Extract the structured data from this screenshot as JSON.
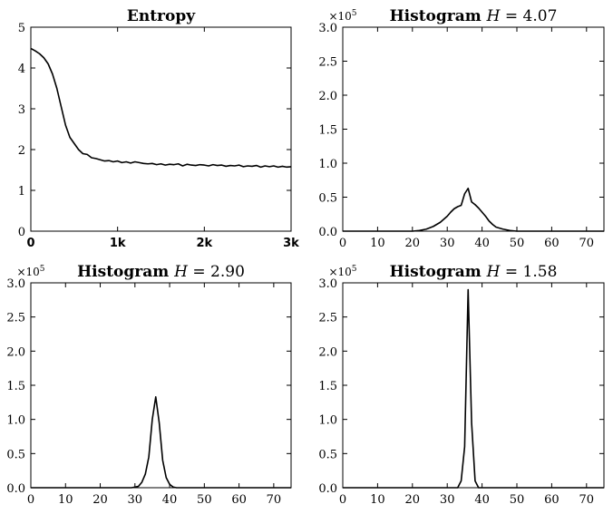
{
  "chart_data": [
    {
      "id": "entropy",
      "type": "line",
      "title": "Entropy",
      "title_parts": [
        {
          "text": "Entropy",
          "style": "bold"
        }
      ],
      "xlim": [
        0,
        3000
      ],
      "ylim": [
        0,
        5
      ],
      "xticks": [
        0,
        1000,
        2000,
        3000
      ],
      "xtick_labels": [
        "0",
        "1k",
        "2k",
        "3k"
      ],
      "yticks": [
        0,
        1,
        2,
        3,
        4,
        5
      ],
      "ytick_labels": [
        "0",
        "1",
        "2",
        "3",
        "4",
        "5"
      ],
      "multiplier": "",
      "grid": false,
      "x": [
        0,
        50,
        100,
        150,
        200,
        250,
        300,
        350,
        400,
        450,
        500,
        550,
        600,
        650,
        700,
        750,
        800,
        850,
        900,
        950,
        1000,
        1050,
        1100,
        1150,
        1200,
        1250,
        1300,
        1350,
        1400,
        1450,
        1500,
        1550,
        1600,
        1650,
        1700,
        1750,
        1800,
        1850,
        1900,
        1950,
        2000,
        2050,
        2100,
        2150,
        2200,
        2250,
        2300,
        2350,
        2400,
        2450,
        2500,
        2550,
        2600,
        2650,
        2700,
        2750,
        2800,
        2850,
        2900,
        2950,
        3000
      ],
      "y": [
        4.48,
        4.42,
        4.35,
        4.25,
        4.1,
        3.85,
        3.5,
        3.05,
        2.6,
        2.3,
        2.15,
        2.0,
        1.9,
        1.88,
        1.8,
        1.78,
        1.75,
        1.72,
        1.73,
        1.7,
        1.72,
        1.68,
        1.7,
        1.67,
        1.7,
        1.68,
        1.66,
        1.65,
        1.66,
        1.63,
        1.65,
        1.62,
        1.64,
        1.63,
        1.65,
        1.6,
        1.64,
        1.62,
        1.61,
        1.63,
        1.62,
        1.6,
        1.63,
        1.61,
        1.62,
        1.59,
        1.61,
        1.6,
        1.62,
        1.58,
        1.6,
        1.59,
        1.61,
        1.57,
        1.6,
        1.58,
        1.6,
        1.57,
        1.59,
        1.57,
        1.58
      ]
    },
    {
      "id": "hist-1",
      "type": "line",
      "title": "Histogram H = 4.07",
      "title_parts": [
        {
          "text": "Histogram ",
          "style": "bold"
        },
        {
          "text": "H",
          "style": "italic"
        },
        {
          "text": " = 4.07",
          "style": "normal"
        }
      ],
      "xlim": [
        0,
        75
      ],
      "ylim": [
        0,
        300000
      ],
      "xticks": [
        0,
        10,
        20,
        30,
        40,
        50,
        60,
        70
      ],
      "xtick_labels": [
        "0",
        "10",
        "20",
        "30",
        "40",
        "50",
        "60",
        "70"
      ],
      "yticks": [
        0,
        50000,
        100000,
        150000,
        200000,
        250000,
        300000
      ],
      "ytick_labels": [
        "0.0",
        "0.5",
        "1.0",
        "1.5",
        "2.0",
        "2.5",
        "3.0"
      ],
      "multiplier": "×10",
      "multiplier_exp": "5",
      "grid": false,
      "x": [
        0,
        20,
        22,
        24,
        26,
        28,
        30,
        31,
        32,
        33,
        34,
        35,
        36,
        37,
        38,
        39,
        40,
        41,
        42,
        43,
        44,
        46,
        48,
        50,
        75
      ],
      "y": [
        0,
        0,
        1000,
        3000,
        7000,
        13000,
        22000,
        28000,
        33000,
        36000,
        38000,
        55000,
        63000,
        43000,
        39000,
        34000,
        28000,
        22000,
        15000,
        10000,
        6000,
        3000,
        1000,
        0,
        0
      ]
    },
    {
      "id": "hist-2",
      "type": "line",
      "title": "Histogram H = 2.90",
      "title_parts": [
        {
          "text": "Histogram ",
          "style": "bold"
        },
        {
          "text": "H",
          "style": "italic"
        },
        {
          "text": " = 2.90",
          "style": "normal"
        }
      ],
      "xlim": [
        0,
        75
      ],
      "ylim": [
        0,
        300000
      ],
      "xticks": [
        0,
        10,
        20,
        30,
        40,
        50,
        60,
        70
      ],
      "xtick_labels": [
        "0",
        "10",
        "20",
        "30",
        "40",
        "50",
        "60",
        "70"
      ],
      "yticks": [
        0,
        50000,
        100000,
        150000,
        200000,
        250000,
        300000
      ],
      "ytick_labels": [
        "0.0",
        "0.5",
        "1.0",
        "1.5",
        "2.0",
        "2.5",
        "3.0"
      ],
      "multiplier": "×10",
      "multiplier_exp": "5",
      "grid": false,
      "x": [
        0,
        29,
        31,
        32,
        33,
        34,
        35,
        36,
        37,
        38,
        39,
        40,
        41,
        42,
        75
      ],
      "y": [
        0,
        0,
        2000,
        8000,
        20000,
        45000,
        100000,
        133000,
        95000,
        40000,
        15000,
        5000,
        1000,
        0,
        0
      ]
    },
    {
      "id": "hist-3",
      "type": "line",
      "title": "Histogram H = 1.58",
      "title_parts": [
        {
          "text": "Histogram ",
          "style": "bold"
        },
        {
          "text": "H",
          "style": "italic"
        },
        {
          "text": " = 1.58",
          "style": "normal"
        }
      ],
      "xlim": [
        0,
        75
      ],
      "ylim": [
        0,
        300000
      ],
      "xticks": [
        0,
        10,
        20,
        30,
        40,
        50,
        60,
        70
      ],
      "xtick_labels": [
        "0",
        "10",
        "20",
        "30",
        "40",
        "50",
        "60",
        "70"
      ],
      "yticks": [
        0,
        50000,
        100000,
        150000,
        200000,
        250000,
        300000
      ],
      "ytick_labels": [
        "0.0",
        "0.5",
        "1.0",
        "1.5",
        "2.0",
        "2.5",
        "3.0"
      ],
      "multiplier": "×10",
      "multiplier_exp": "5",
      "grid": false,
      "x": [
        0,
        33,
        34,
        35,
        36,
        37,
        38,
        39,
        75
      ],
      "y": [
        0,
        0,
        10000,
        60000,
        290000,
        95000,
        10000,
        0,
        0
      ]
    }
  ]
}
